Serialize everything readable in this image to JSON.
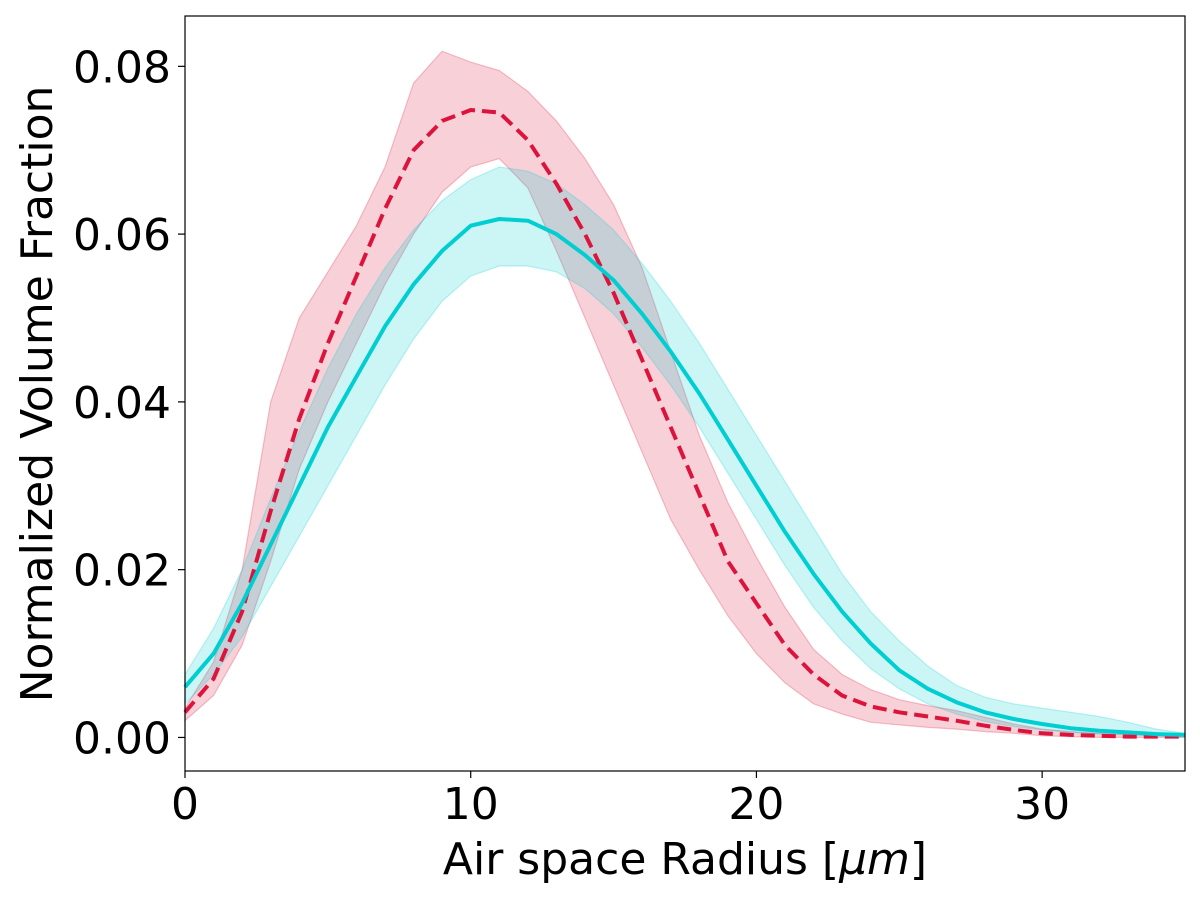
{
  "chart_data": {
    "type": "line",
    "xlabel": "Air space Radius [",
    "xlabel_unit": "μm",
    "xlabel_close": "]",
    "ylabel": "Normalized Volume Fraction",
    "xlim": [
      0,
      35
    ],
    "ylim": [
      -0.004,
      0.086
    ],
    "grid": false,
    "legend": "none",
    "xticks": [
      {
        "value": 0,
        "label": "0"
      },
      {
        "value": 10,
        "label": "10"
      },
      {
        "value": 20,
        "label": "20"
      },
      {
        "value": 30,
        "label": "30"
      }
    ],
    "yticks": [
      {
        "value": 0.0,
        "label": "0.00"
      },
      {
        "value": 0.02,
        "label": "0.02"
      },
      {
        "value": 0.04,
        "label": "0.04"
      },
      {
        "value": 0.06,
        "label": "0.06"
      },
      {
        "value": 0.08,
        "label": "0.08"
      }
    ],
    "series": [
      {
        "color": "#dc143c",
        "style": "dashed",
        "x": [
          0,
          1,
          2,
          3,
          4,
          5,
          6,
          7,
          8,
          9,
          10,
          11,
          12,
          13,
          14,
          15,
          16,
          17,
          18,
          19,
          20,
          21,
          22,
          23,
          24,
          25,
          26,
          27,
          28,
          29,
          30,
          31,
          32,
          33,
          34,
          35
        ],
        "y": [
          0.003,
          0.007,
          0.015,
          0.027,
          0.038,
          0.047,
          0.055,
          0.063,
          0.07,
          0.0735,
          0.0748,
          0.0745,
          0.0712,
          0.066,
          0.06,
          0.053,
          0.045,
          0.037,
          0.029,
          0.021,
          0.016,
          0.011,
          0.0075,
          0.005,
          0.0037,
          0.003,
          0.0025,
          0.002,
          0.0014,
          0.0009,
          0.0005,
          0.0003,
          0.0002,
          0.0001,
          0.0001,
          0.0001
        ],
        "lower": [
          0.002,
          0.005,
          0.011,
          0.021,
          0.032,
          0.04,
          0.047,
          0.054,
          0.06,
          0.065,
          0.068,
          0.069,
          0.0655,
          0.058,
          0.05,
          0.042,
          0.034,
          0.026,
          0.02,
          0.0145,
          0.01,
          0.0065,
          0.004,
          0.0028,
          0.0018,
          0.0015,
          0.0012,
          0.001,
          0.0007,
          0.0005,
          0.0002,
          0.0001,
          0.0,
          0.0,
          0.0,
          0.0
        ],
        "upper": [
          0.0035,
          0.009,
          0.02,
          0.04,
          0.05,
          0.0555,
          0.061,
          0.068,
          0.078,
          0.0818,
          0.0805,
          0.0795,
          0.077,
          0.0735,
          0.069,
          0.0635,
          0.056,
          0.046,
          0.036,
          0.028,
          0.0215,
          0.0155,
          0.0105,
          0.0075,
          0.0057,
          0.0045,
          0.0038,
          0.0032,
          0.0024,
          0.0016,
          0.001,
          0.0007,
          0.0005,
          0.0004,
          0.0003,
          0.0002
        ]
      },
      {
        "color": "#00ced1",
        "style": "solid",
        "x": [
          0,
          1,
          2,
          3,
          4,
          5,
          6,
          7,
          8,
          9,
          10,
          11,
          12,
          13,
          14,
          15,
          16,
          17,
          18,
          19,
          20,
          21,
          22,
          23,
          24,
          25,
          26,
          27,
          28,
          29,
          30,
          31,
          32,
          33,
          34,
          35
        ],
        "y": [
          0.006,
          0.01,
          0.016,
          0.023,
          0.03,
          0.037,
          0.043,
          0.049,
          0.054,
          0.058,
          0.061,
          0.0618,
          0.0616,
          0.06,
          0.0575,
          0.0545,
          0.0505,
          0.046,
          0.041,
          0.0355,
          0.03,
          0.0245,
          0.0195,
          0.015,
          0.0112,
          0.008,
          0.0058,
          0.0042,
          0.003,
          0.0022,
          0.0016,
          0.0011,
          0.0008,
          0.0006,
          0.0004,
          0.0003
        ],
        "lower": [
          0.004,
          0.0075,
          0.012,
          0.018,
          0.024,
          0.03,
          0.036,
          0.042,
          0.0475,
          0.052,
          0.055,
          0.0562,
          0.0562,
          0.0555,
          0.0535,
          0.0505,
          0.0465,
          0.042,
          0.037,
          0.0315,
          0.026,
          0.0205,
          0.0155,
          0.0115,
          0.0082,
          0.0058,
          0.004,
          0.0028,
          0.0019,
          0.0013,
          0.0009,
          0.0006,
          0.0004,
          0.0003,
          0.0002,
          0.0001
        ],
        "upper": [
          0.0075,
          0.013,
          0.02,
          0.0285,
          0.0365,
          0.044,
          0.0505,
          0.056,
          0.0605,
          0.064,
          0.0665,
          0.068,
          0.0675,
          0.066,
          0.0635,
          0.0605,
          0.0565,
          0.052,
          0.047,
          0.0415,
          0.036,
          0.0305,
          0.025,
          0.0195,
          0.015,
          0.0115,
          0.0085,
          0.0062,
          0.0048,
          0.004,
          0.0035,
          0.003,
          0.0025,
          0.0018,
          0.001,
          0.0005
        ]
      }
    ]
  }
}
